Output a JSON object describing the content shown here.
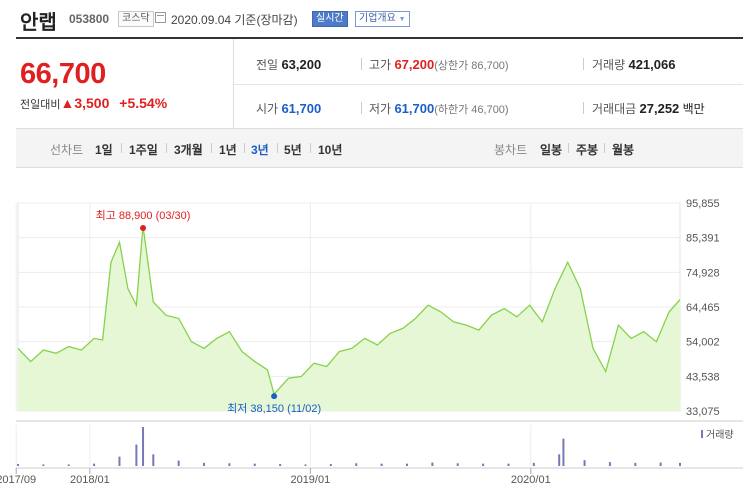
{
  "header": {
    "name": "안랩",
    "code": "053800",
    "market": "코스닥",
    "date_text": "2020.09.04 기준(장마감)",
    "realtime_label": "실시간",
    "info_label": "기업개요"
  },
  "quote": {
    "price": "66,700",
    "change_label": "전일대비",
    "change_arrow": "▲",
    "change": "3,500",
    "change_pct": "+5.54%",
    "prev_label": "전일",
    "prev": "63,200",
    "high_label": "고가",
    "high": "67,200",
    "upper_limit": "(상한가 86,700)",
    "volume_label": "거래량",
    "volume": "421,066",
    "open_label": "시가",
    "open": "61,700",
    "low_label": "저가",
    "low": "61,700",
    "lower_limit": "(하한가 46,700)",
    "amount_label": "거래대금",
    "amount": "27,252",
    "amount_unit": "백만"
  },
  "period_tabs": {
    "label": "선차트",
    "items": [
      "1일",
      "1주일",
      "3개월",
      "1년",
      "3년",
      "5년",
      "10년"
    ],
    "selected": "3년"
  },
  "candle_tabs": {
    "label": "봉차트",
    "items": [
      "일봉",
      "주봉",
      "월봉"
    ]
  },
  "colors": {
    "line": "#86d24a",
    "fill": "#e6f7d6",
    "up": "#e02020",
    "down": "#1a5fc8",
    "volume": "#7878b8"
  },
  "chart_data": {
    "type": "area",
    "y_ticks": [
      "95,855",
      "85,391",
      "74,928",
      "64,465",
      "54,002",
      "43,538",
      "33,075"
    ],
    "ylim": [
      33075,
      95855
    ],
    "x_ticks": [
      "2017/09",
      "2018/01",
      "2019/01",
      "2020/01"
    ],
    "x_tick_dates": [
      "2017-09-01",
      "2018-01-01",
      "2019-01-01",
      "2020-01-01"
    ],
    "xlim": [
      "2017-09-04",
      "2020-09-04"
    ],
    "grid": true,
    "max_annotation": "최고 88,900 (03/30)",
    "min_annotation": "최저 38,150 (11/02)",
    "max_point": {
      "x": "2018-03-30",
      "y": 88900
    },
    "min_point": {
      "x": "2018-11-02",
      "y": 38150
    },
    "volume_legend": "거래량",
    "series": [
      {
        "x": [
          "2017-09-04",
          "2017-09-25",
          "2017-10-16",
          "2017-11-06",
          "2017-11-27",
          "2017-12-18",
          "2018-01-08",
          "2018-01-22",
          "2018-02-05",
          "2018-02-19",
          "2018-03-05",
          "2018-03-19",
          "2018-03-30",
          "2018-04-16",
          "2018-05-07",
          "2018-05-28",
          "2018-06-18",
          "2018-07-09",
          "2018-07-30",
          "2018-08-20",
          "2018-09-10",
          "2018-10-01",
          "2018-10-22",
          "2018-11-02",
          "2018-11-26",
          "2018-12-17",
          "2019-01-07",
          "2019-01-28",
          "2019-02-18",
          "2019-03-11",
          "2019-04-01",
          "2019-04-22",
          "2019-05-13",
          "2019-06-03",
          "2019-06-24",
          "2019-07-15",
          "2019-08-05",
          "2019-08-26",
          "2019-09-16",
          "2019-10-07",
          "2019-10-28",
          "2019-11-18",
          "2019-12-09",
          "2019-12-30",
          "2020-01-20",
          "2020-02-10",
          "2020-03-02",
          "2020-03-23",
          "2020-04-13",
          "2020-05-04",
          "2020-05-25",
          "2020-06-15",
          "2020-07-06",
          "2020-07-27",
          "2020-08-17",
          "2020-09-04"
        ],
        "y": [
          52000,
          48000,
          51500,
          50500,
          52500,
          51500,
          55000,
          54500,
          78000,
          84000,
          70000,
          65000,
          88900,
          66000,
          62000,
          61000,
          54000,
          52000,
          55000,
          57000,
          51000,
          48000,
          45500,
          38150,
          43000,
          43500,
          47500,
          46500,
          51000,
          52000,
          55000,
          53000,
          56500,
          58000,
          61000,
          65000,
          63000,
          60000,
          59000,
          57500,
          62000,
          64000,
          61500,
          65000,
          60000,
          70000,
          78000,
          70000,
          52000,
          45000,
          59000,
          55000,
          57000,
          54000,
          63000,
          66700
        ]
      }
    ],
    "volume_x": [
      "2017-09-04",
      "2017-10-16",
      "2017-11-27",
      "2018-01-08",
      "2018-02-19",
      "2018-03-19",
      "2018-03-30",
      "2018-04-16",
      "2018-05-28",
      "2018-07-09",
      "2018-08-20",
      "2018-10-01",
      "2018-11-12",
      "2018-12-24",
      "2019-02-04",
      "2019-03-18",
      "2019-04-29",
      "2019-06-10",
      "2019-07-22",
      "2019-09-02",
      "2019-10-14",
      "2019-11-25",
      "2020-01-06",
      "2020-02-17",
      "2020-02-24",
      "2020-03-30",
      "2020-05-11",
      "2020-06-22",
      "2020-08-03",
      "2020-09-04"
    ],
    "volume_y": [
      5,
      4,
      4,
      6,
      24,
      55,
      100,
      30,
      14,
      8,
      7,
      6,
      5,
      4,
      5,
      7,
      6,
      6,
      9,
      7,
      6,
      6,
      8,
      30,
      70,
      15,
      10,
      8,
      9,
      8
    ]
  }
}
